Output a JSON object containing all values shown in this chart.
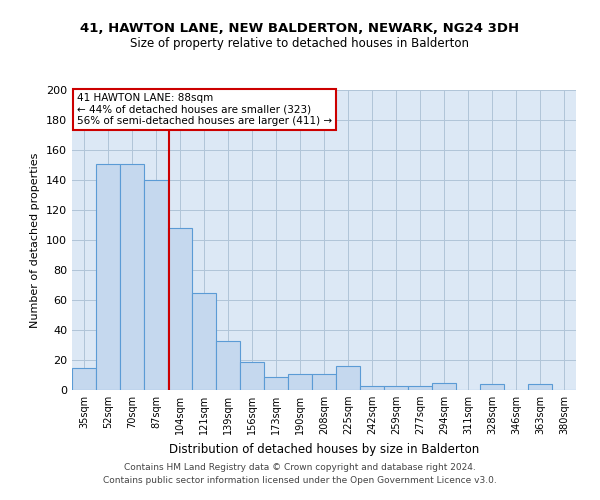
{
  "title1": "41, HAWTON LANE, NEW BALDERTON, NEWARK, NG24 3DH",
  "title2": "Size of property relative to detached houses in Balderton",
  "xlabel": "Distribution of detached houses by size in Balderton",
  "ylabel": "Number of detached properties",
  "categories": [
    "35sqm",
    "52sqm",
    "70sqm",
    "87sqm",
    "104sqm",
    "121sqm",
    "139sqm",
    "156sqm",
    "173sqm",
    "190sqm",
    "208sqm",
    "225sqm",
    "242sqm",
    "259sqm",
    "277sqm",
    "294sqm",
    "311sqm",
    "328sqm",
    "346sqm",
    "363sqm",
    "380sqm"
  ],
  "values": [
    15,
    151,
    151,
    140,
    108,
    65,
    33,
    19,
    9,
    11,
    11,
    16,
    3,
    3,
    3,
    5,
    0,
    4,
    0,
    4,
    0
  ],
  "bar_color": "#c5d8ee",
  "bar_edge_color": "#5b9bd5",
  "annotation_line1": "41 HAWTON LANE: 88sqm",
  "annotation_line2": "← 44% of detached houses are smaller (323)",
  "annotation_line3": "56% of semi-detached houses are larger (411) →",
  "vline_x": 3.55,
  "vline_color": "#cc0000",
  "annotation_box_color": "#ffffff",
  "annotation_box_edge": "#cc0000",
  "ylim": [
    0,
    200
  ],
  "yticks": [
    0,
    20,
    40,
    60,
    80,
    100,
    120,
    140,
    160,
    180,
    200
  ],
  "grid_color": "#b0c4d8",
  "bg_color": "#dce8f5",
  "fig_bg_color": "#ffffff",
  "footer1": "Contains HM Land Registry data © Crown copyright and database right 2024.",
  "footer2": "Contains public sector information licensed under the Open Government Licence v3.0."
}
